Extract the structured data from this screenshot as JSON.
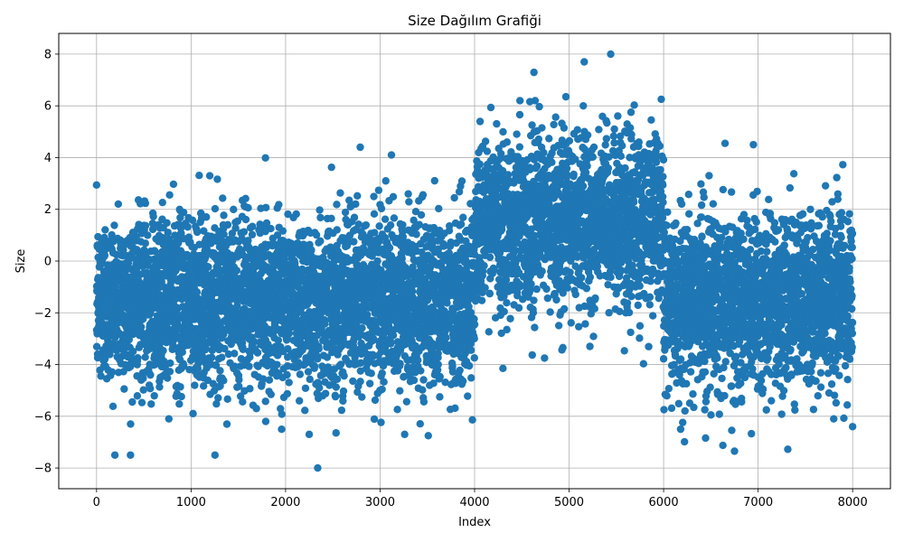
{
  "chart_data": {
    "type": "scatter",
    "title": "Size Dağılım Grafiği",
    "xlabel": "Index",
    "ylabel": "Size",
    "xlim": [
      -400,
      8400
    ],
    "ylim": [
      -8.8,
      8.8
    ],
    "x_ticks": [
      0,
      1000,
      2000,
      3000,
      4000,
      5000,
      6000,
      7000,
      8000
    ],
    "y_ticks": [
      -8,
      -6,
      -4,
      -2,
      0,
      2,
      4,
      6,
      8
    ],
    "grid": true,
    "legend": "none",
    "marker_color": "#1f77b4",
    "point_count": 8000,
    "segments": [
      {
        "x_range": [
          0,
          4000
        ],
        "center": -1.5,
        "spread": 1.6
      },
      {
        "x_range": [
          4000,
          6000
        ],
        "center": 1.5,
        "spread": 1.6
      },
      {
        "x_range": [
          6000,
          8000
        ],
        "center": -1.5,
        "spread": 1.6
      }
    ],
    "notable_points": [
      {
        "x": 5440,
        "y": 8.0
      },
      {
        "x": 5160,
        "y": 7.7
      },
      {
        "x": 2340,
        "y": -8.0
      },
      {
        "x": 6750,
        "y": -7.35
      },
      {
        "x": 4480,
        "y": 6.2
      },
      {
        "x": 4640,
        "y": 6.2
      },
      {
        "x": 5150,
        "y": 6.0
      },
      {
        "x": 2790,
        "y": 4.4
      },
      {
        "x": 3120,
        "y": 4.1
      },
      {
        "x": 6950,
        "y": 4.5
      },
      {
        "x": 6650,
        "y": 4.55
      },
      {
        "x": 2250,
        "y": -6.7
      },
      {
        "x": 3260,
        "y": -6.7
      },
      {
        "x": 3510,
        "y": -6.75
      },
      {
        "x": 6180,
        "y": -6.5
      },
      {
        "x": 7800,
        "y": -6.1
      },
      {
        "x": 8000,
        "y": -6.4
      },
      {
        "x": 360,
        "y": -6.3
      },
      {
        "x": 1790,
        "y": -6.2
      },
      {
        "x": 4300,
        "y": -4.15
      },
      {
        "x": 4740,
        "y": -3.75
      },
      {
        "x": 5220,
        "y": -3.3
      }
    ]
  }
}
